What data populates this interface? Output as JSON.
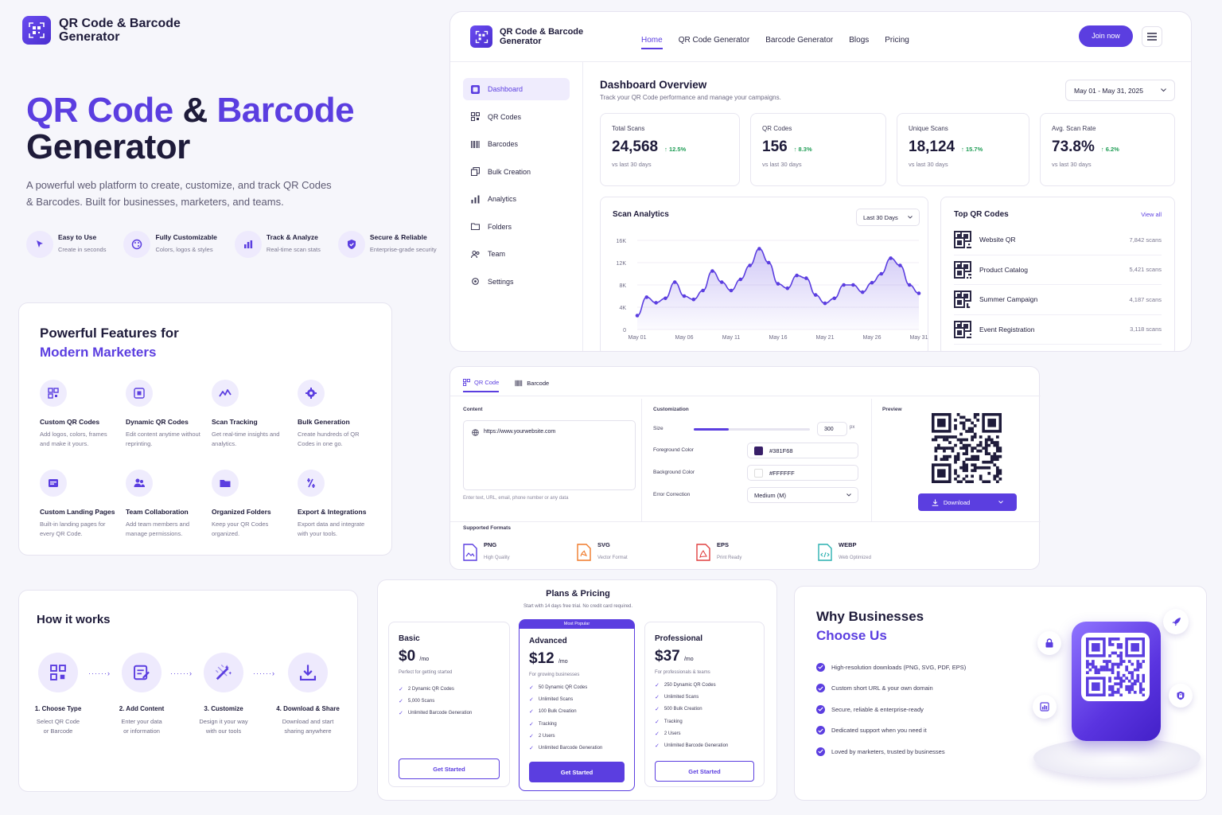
{
  "brand": {
    "name_line1": "QR Code & Barcode",
    "name_line2": "Generator"
  },
  "hero": {
    "title_part1": "QR Code",
    "title_amp": "&",
    "title_part2": "Barcode",
    "title_line2": "Generator",
    "desc_line1": "A powerful web platform to create, customize, and track QR Codes",
    "desc_line2": "& Barcodes. Built for businesses, marketers, and teams.",
    "pills": [
      {
        "title": "Easy to Use",
        "sub": "Create in seconds",
        "icon": "cursor-icon"
      },
      {
        "title": "Fully Customizable",
        "sub": "Colors, logos & styles",
        "icon": "palette-icon"
      },
      {
        "title": "Track & Analyze",
        "sub": "Real-time scan stats",
        "icon": "chart-icon"
      },
      {
        "title": "Secure & Reliable",
        "sub": "Enterprise-grade security",
        "icon": "shield-icon"
      }
    ]
  },
  "features": {
    "title_line1": "Powerful Features for",
    "title_line2": "Modern Marketers",
    "items": [
      {
        "title": "Custom QR Codes",
        "desc": "Add logos, colors, frames and make it yours."
      },
      {
        "title": "Dynamic QR Codes",
        "desc": "Edit content anytime without reprinting."
      },
      {
        "title": "Scan Tracking",
        "desc": "Get real-time insights and analytics."
      },
      {
        "title": "Bulk Generation",
        "desc": "Create hundreds of QR Codes in one go."
      },
      {
        "title": "Custom Landing Pages",
        "desc": "Built-in landing pages for every QR Code."
      },
      {
        "title": "Team Collaboration",
        "desc": "Add team members and manage permissions."
      },
      {
        "title": "Organized Folders",
        "desc": "Keep your QR Codes organized."
      },
      {
        "title": "Export & Integrations",
        "desc": "Export data and integrate with your tools."
      }
    ]
  },
  "dashboard": {
    "brand_line1": "QR Code & Barcode",
    "brand_line2": "Generator",
    "nav": [
      "Home",
      "QR Code Generator",
      "Barcode Generator",
      "Blogs",
      "Pricing"
    ],
    "join": "Join now",
    "sidebar": [
      "Dashboard",
      "QR Codes",
      "Barcodes",
      "Bulk Creation",
      "Analytics",
      "Folders",
      "Team",
      "Settings"
    ],
    "title": "Dashboard Overview",
    "subtitle": "Track your QR Code performance and manage your campaigns.",
    "date_range": "May 01 - May 31, 2025",
    "stats": [
      {
        "label": "Total Scans",
        "value": "24,568",
        "change": "12.5%",
        "sub": "vs last 30 days"
      },
      {
        "label": "QR Codes",
        "value": "156",
        "change": "8.3%",
        "sub": "vs last 30 days"
      },
      {
        "label": "Unique Scans",
        "value": "18,124",
        "change": "15.7%",
        "sub": "vs last 30 days"
      },
      {
        "label": "Avg. Scan Rate",
        "value": "73.8%",
        "change": "6.2%",
        "sub": "vs last 30 days"
      }
    ],
    "analytics_title": "Scan Analytics",
    "analytics_range": "Last 30 Days",
    "top_title": "Top QR Codes",
    "top_view_all": "View all",
    "top": [
      {
        "name": "Website QR",
        "scans": "7,842 scans"
      },
      {
        "name": "Product Catalog",
        "scans": "5,421 scans"
      },
      {
        "name": "Summer Campaign",
        "scans": "4,187 scans"
      },
      {
        "name": "Event Registration",
        "scans": "3,118 scans"
      }
    ]
  },
  "chart_data": {
    "type": "area",
    "title": "Scan Analytics",
    "x_ticks": [
      "May 01",
      "May 06",
      "May 11",
      "May 16",
      "May 21",
      "May 26",
      "May 31"
    ],
    "y_ticks": [
      "16K",
      "12K",
      "8K",
      "4K",
      "0"
    ],
    "ylim": [
      0,
      16000
    ],
    "x": [
      1,
      2,
      3,
      4,
      5,
      6,
      7,
      8,
      9,
      10,
      11,
      12,
      13,
      14,
      15,
      16,
      17,
      18,
      19,
      20,
      21,
      22,
      23,
      24,
      25,
      26,
      27,
      28,
      29,
      30,
      31
    ],
    "values": [
      2500,
      5800,
      4800,
      5600,
      8500,
      6000,
      5400,
      7000,
      10500,
      8500,
      7000,
      9000,
      11500,
      14500,
      12000,
      8200,
      7400,
      9700,
      9200,
      6200,
      4700,
      5600,
      8000,
      8000,
      6700,
      8400,
      10000,
      12800,
      11500,
      8000,
      6500
    ],
    "color": "#5b3ee0"
  },
  "generator": {
    "tab_qr": "QR Code",
    "tab_barcode": "Barcode",
    "content_label": "Content",
    "url": "https://www.yourwebsite.com",
    "hint": "Enter text, URL, email, phone number or any data",
    "custom_label": "Customization",
    "size_label": "Size",
    "size_value": "300",
    "size_unit": "px",
    "size_fraction": 0.3,
    "fg_label": "Foreground Color",
    "fg_value": "#381F68",
    "bg_label": "Background Color",
    "bg_value": "#FFFFFF",
    "ec_label": "Error Correction",
    "ec_value": "Medium (M)",
    "preview_label": "Preview",
    "download": "Download",
    "formats_label": "Supported Formats",
    "formats": [
      {
        "name": "PNG",
        "sub": "High Quality",
        "color": "#5b3ee0"
      },
      {
        "name": "SVG",
        "sub": "Vector Format",
        "color": "#f07a2a"
      },
      {
        "name": "EPS",
        "sub": "Print Ready",
        "color": "#e04040"
      },
      {
        "name": "WEBP",
        "sub": "Web Optimized",
        "color": "#2ab0b0"
      }
    ]
  },
  "how": {
    "title": "How it works",
    "steps": [
      {
        "title": "1. Choose Type",
        "line1": "Select QR Code",
        "line2": "or Barcode"
      },
      {
        "title": "2. Add Content",
        "line1": "Enter your data",
        "line2": "or information"
      },
      {
        "title": "3. Customize",
        "line1": "Design it your way",
        "line2": "with our tools"
      },
      {
        "title": "4. Download & Share",
        "line1": "Download and start",
        "line2": "sharing anywhere"
      }
    ]
  },
  "pricing": {
    "title": "Plans & Pricing",
    "subtitle": "Start with 14 days free trial. No credit card required.",
    "popular": "Most Popular",
    "plans": [
      {
        "name": "Basic",
        "price": "$0",
        "per": "/mo",
        "desc": "Perfect for getting started",
        "features": [
          "2 Dynamic QR Codes",
          "5,000 Scans",
          "Unlimited Barcode Generation"
        ],
        "cta": "Get Started"
      },
      {
        "name": "Advanced",
        "price": "$12",
        "per": "/mo",
        "desc": "For growing businesses",
        "features": [
          "50 Dynamic QR Codes",
          "Unlimited Scans",
          "100 Bulk Creation",
          "Tracking",
          "2 Users",
          "Unlimited Barcode Generation"
        ],
        "cta": "Get Started"
      },
      {
        "name": "Professional",
        "price": "$37",
        "per": "/mo",
        "desc": "For professionals & teams",
        "features": [
          "250 Dynamic QR Codes",
          "Unlimited Scans",
          "500 Bulk Creation",
          "Tracking",
          "2 Users",
          "Unlimited Barcode Generation"
        ],
        "cta": "Get Started"
      }
    ]
  },
  "why": {
    "title_line1": "Why Businesses",
    "title_line2": "Choose Us",
    "items": [
      "High-resolution downloads (PNG, SVG, PDF, EPS)",
      "Custom short URL & your own domain",
      "Secure, reliable & enterprise-ready",
      "Dedicated support when you need it",
      "Loved by marketers, trusted by businesses"
    ]
  }
}
